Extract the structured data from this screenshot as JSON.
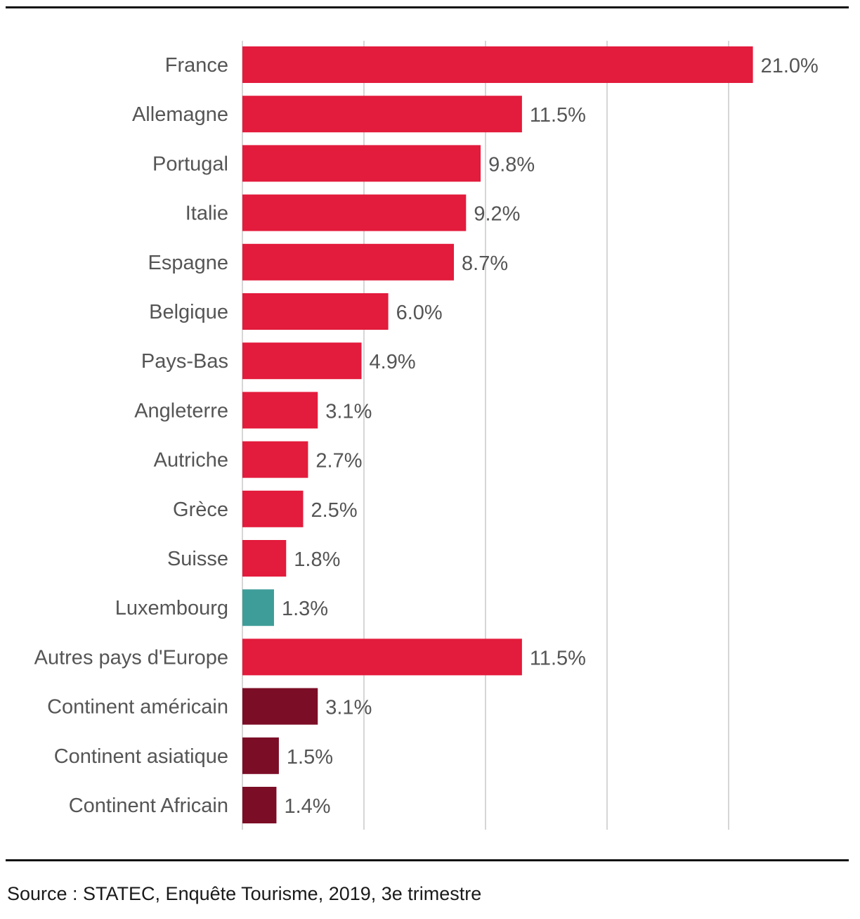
{
  "chart_data": {
    "type": "bar",
    "orientation": "horizontal",
    "categories": [
      "France",
      "Allemagne",
      "Portugal",
      "Italie",
      "Espagne",
      "Belgique",
      "Pays-Bas",
      "Angleterre",
      "Autriche",
      "Grèce",
      "Suisse",
      "Luxembourg",
      "Autres pays d'Europe",
      "Continent américain",
      "Continent asiatique",
      "Continent Africain"
    ],
    "values": [
      21.0,
      11.5,
      9.8,
      9.2,
      8.7,
      6.0,
      4.9,
      3.1,
      2.7,
      2.5,
      1.8,
      1.3,
      11.5,
      3.1,
      1.5,
      1.4
    ],
    "data_labels": [
      "21.0%",
      "11.5%",
      "9.8%",
      "9.2%",
      "8.7%",
      "6.0%",
      "4.9%",
      "3.1%",
      "2.7%",
      "2.5%",
      "1.8%",
      "1.3%",
      "11.5%",
      "3.1%",
      "1.5%",
      "1.4%"
    ],
    "bar_colors": [
      "#e31b3c",
      "#e31b3c",
      "#e31b3c",
      "#e31b3c",
      "#e31b3c",
      "#e31b3c",
      "#e31b3c",
      "#e31b3c",
      "#e31b3c",
      "#e31b3c",
      "#e31b3c",
      "#3f9d99",
      "#e31b3c",
      "#7b0d26",
      "#7b0d26",
      "#7b0d26"
    ],
    "xlim": [
      0,
      25
    ],
    "grid_step": 5,
    "grid": true,
    "title": "",
    "xlabel": "",
    "ylabel": ""
  },
  "source": "Source : STATEC, Enquête Tourisme, 2019, 3e trimestre"
}
